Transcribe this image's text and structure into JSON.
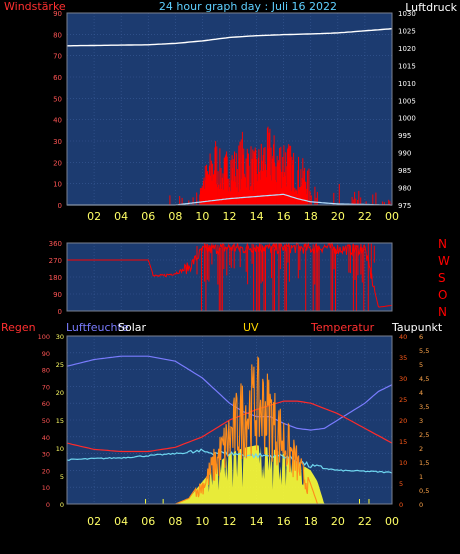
{
  "colors": {
    "background": "#000000",
    "plot": "#1c3b70",
    "grid": "#3a5b98",
    "frame": "#7a8090",
    "pressure": "#ffffff",
    "wind_gust": "#ff0000",
    "wind_avg": "#b6e0ff",
    "direction": "#ff0000",
    "humidity": "#7a7cff",
    "dewpoint": "#6fd7f0",
    "temperature": "#ff2a2a",
    "uv": "#ff8c1a",
    "solar": "#ffff33",
    "hour_labels": "#ffff66",
    "left_ticks": "#ff5555",
    "right_ticks_top": "#ffffff",
    "right_ticks_temp": "#ff5a1a",
    "right_ticks_uv": "#ffa54a"
  },
  "header": {
    "title": "24 hour graph day : Juli 16 2022",
    "left": "Windstärke",
    "right": "Luftdruck"
  },
  "hour_labels": [
    "02",
    "04",
    "06",
    "08",
    "10",
    "12",
    "14",
    "16",
    "18",
    "20",
    "22",
    "00"
  ],
  "panel1": {
    "left_ticks": [
      "90",
      "80",
      "70",
      "60",
      "50",
      "40",
      "30",
      "20",
      "10",
      "0"
    ],
    "right_ticks": [
      "1030",
      "1025",
      "1020",
      "1015",
      "1010",
      "1005",
      "1000",
      "995",
      "990",
      "985",
      "980",
      "975"
    ]
  },
  "panel2": {
    "left_ticks": [
      "360",
      "270",
      "180",
      "90",
      "0"
    ],
    "right_labels": [
      "N",
      "W",
      "S",
      "O",
      "N"
    ]
  },
  "panel3": {
    "labels": {
      "regen": "Regen",
      "luftfeuchte": "Luftfeuchte",
      "solar": "Solar",
      "uv": "UV",
      "temperatur": "Temperatur",
      "taupunkt": "Taupunkt"
    },
    "regen_ticks": [
      "100",
      "90",
      "80",
      "70",
      "60",
      "50",
      "40",
      "30",
      "20",
      "10",
      "0"
    ],
    "feuchte_ticks": [
      "30",
      "25",
      "20",
      "15",
      "10",
      "5",
      "0"
    ],
    "temp_ticks": [
      "40",
      "35",
      "30",
      "25",
      "20",
      "15",
      "10",
      "5",
      "0"
    ],
    "uv_ticks": [
      "6",
      "5,5",
      "5",
      "4,5",
      "4",
      "3,5",
      "3",
      "2,5",
      "2",
      "1,5",
      "1",
      "0,5",
      "0"
    ]
  },
  "chart_data": [
    {
      "type": "line",
      "x_unit": "hour of day",
      "xlim": [
        0,
        24
      ],
      "series": [
        {
          "name": "Luftdruck",
          "axis": "right",
          "ylim": [
            975,
            1030
          ],
          "x": [
            0,
            2,
            4,
            6,
            8,
            10,
            12,
            14,
            16,
            18,
            20,
            22,
            24
          ],
          "values": [
            1020.6,
            1020.7,
            1020.8,
            1020.9,
            1021.3,
            1022.0,
            1023.0,
            1023.5,
            1023.8,
            1024.0,
            1024.3,
            1024.9,
            1025.5
          ]
        },
        {
          "name": "Windstärke Böen",
          "axis": "left",
          "ylim": [
            0,
            90
          ],
          "x": [
            0,
            2,
            4,
            6,
            8,
            9,
            10,
            10.5,
            11,
            11.5,
            12,
            12.5,
            13,
            13.5,
            14,
            14.5,
            15,
            15.5,
            16,
            16.5,
            17,
            17.5,
            18,
            19,
            20,
            21,
            22,
            23,
            24
          ],
          "values": [
            0,
            0,
            0,
            0,
            5,
            4,
            14,
            20,
            28,
            18,
            26,
            22,
            30,
            25,
            22,
            28,
            32,
            26,
            30,
            24,
            20,
            18,
            14,
            12,
            9,
            7,
            6,
            5,
            3
          ]
        },
        {
          "name": "Windstärke Mittel",
          "axis": "left",
          "ylim": [
            0,
            90
          ],
          "x": [
            0,
            8,
            10,
            12,
            14,
            16,
            17,
            18,
            20,
            24
          ],
          "values": [
            0,
            0,
            1.5,
            3,
            4,
            5,
            3,
            1.5,
            0.5,
            0
          ]
        }
      ]
    },
    {
      "type": "line",
      "x_unit": "hour of day",
      "xlim": [
        0,
        24
      ],
      "ylim": [
        0,
        360
      ],
      "series": [
        {
          "name": "Windrichtung",
          "x": [
            0,
            6,
            6.4,
            7,
            8,
            9,
            10,
            11,
            12,
            13,
            14,
            15,
            16,
            17,
            18,
            19,
            20,
            21,
            22,
            23,
            24
          ],
          "values": [
            270,
            270,
            185,
            185,
            200,
            230,
            320,
            330,
            335,
            330,
            340,
            330,
            335,
            335,
            330,
            340,
            330,
            325,
            330,
            20,
            30
          ]
        }
      ]
    },
    {
      "type": "line",
      "x_unit": "hour of day",
      "xlim": [
        0,
        24
      ],
      "series": [
        {
          "name": "Luftfeuchte",
          "axis": "regen",
          "ylim": [
            0,
            100
          ],
          "x": [
            0,
            2,
            4,
            6,
            8,
            10,
            12,
            13,
            14,
            15,
            16,
            17,
            18,
            19,
            20,
            21,
            22,
            23,
            24
          ],
          "values": [
            82,
            86,
            88,
            88,
            85,
            75,
            60,
            55,
            52,
            52,
            48,
            45,
            44,
            45,
            50,
            55,
            60,
            67,
            71
          ]
        },
        {
          "name": "Temperatur",
          "axis": "temperatur",
          "ylim": [
            0,
            40
          ],
          "x": [
            0,
            2,
            4,
            6,
            8,
            10,
            12,
            14,
            16,
            17,
            18,
            20,
            22,
            24
          ],
          "values": [
            14.5,
            13,
            12.5,
            12.5,
            13.5,
            16,
            20,
            22.5,
            24.5,
            24.5,
            24,
            21.5,
            18,
            14.5
          ]
        },
        {
          "name": "Taupunkt",
          "axis": "temperatur",
          "ylim": [
            0,
            40
          ],
          "x": [
            0,
            2,
            4,
            6,
            8,
            10,
            12,
            14,
            16,
            18,
            20,
            22,
            24
          ],
          "values": [
            10.5,
            10.8,
            11,
            11.5,
            12,
            12.5,
            12,
            11.5,
            11.5,
            9,
            8,
            7.8,
            7.5
          ]
        },
        {
          "name": "UV",
          "axis": "uv",
          "ylim": [
            0,
            6
          ],
          "x": [
            0,
            8,
            9,
            10,
            11,
            12,
            12.5,
            13,
            13.5,
            14,
            14.5,
            15,
            15.5,
            16,
            17,
            18,
            18.5,
            19,
            24
          ],
          "values": [
            0,
            0,
            0.2,
            0.9,
            2.1,
            3.3,
            3.9,
            4.5,
            4.8,
            5.0,
            4.9,
            4.5,
            3.8,
            3.2,
            2.0,
            0.7,
            0,
            0,
            0
          ]
        },
        {
          "name": "Solar",
          "axis": "feuchte",
          "ylim": [
            0,
            30
          ],
          "x": [
            0,
            8,
            9,
            10,
            11,
            12,
            13,
            14,
            15,
            16,
            17,
            18,
            18.5,
            19,
            24
          ],
          "values": [
            0,
            0,
            1,
            4,
            7,
            9,
            10,
            10.5,
            10,
            9,
            7.5,
            6,
            4,
            0,
            0
          ]
        }
      ]
    }
  ]
}
